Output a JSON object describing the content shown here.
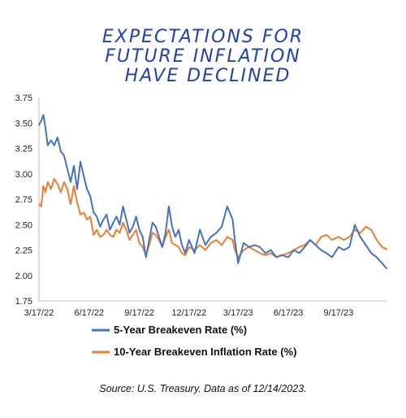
{
  "chart_data": {
    "type": "line",
    "title": [
      "EXPECTATIONS FOR",
      "FUTURE INFLATION",
      "HAVE DECLINED"
    ],
    "xlabel": "",
    "ylabel": "",
    "x_ticks": [
      "3/17/22",
      "6/17/22",
      "9/17/22",
      "12/17/22",
      "3/17/23",
      "6/17/23",
      "9/17/23"
    ],
    "y_ticks": [
      "1.75",
      "2.00",
      "2.25",
      "2.50",
      "2.75",
      "3.00",
      "3.25",
      "3.50",
      "3.75"
    ],
    "ylim": [
      1.75,
      3.75
    ],
    "xlim": [
      "3/17/22",
      "12/14/23"
    ],
    "grid": false,
    "legend_position": "bottom",
    "series": [
      {
        "name": "5-Year Breakeven Rate (%)",
        "color": "#4472c4",
        "x": [
          "3/17/22",
          "3/21/22",
          "3/25/22",
          "3/29/22",
          "4/2/22",
          "4/8/22",
          "4/14/22",
          "4/20/22",
          "4/26/22",
          "5/2/22",
          "5/8/22",
          "5/14/22",
          "5/20/22",
          "5/26/22",
          "6/1/22",
          "6/7/22",
          "6/13/22",
          "6/19/22",
          "6/25/22",
          "7/1/22",
          "7/7/22",
          "7/13/22",
          "7/19/22",
          "7/25/22",
          "7/31/22",
          "8/6/22",
          "8/12/22",
          "8/18/22",
          "8/24/22",
          "8/30/22",
          "9/5/22",
          "9/11/22",
          "9/17/22",
          "9/23/22",
          "9/29/22",
          "10/5/22",
          "10/11/22",
          "10/17/22",
          "10/23/22",
          "10/29/22",
          "11/4/22",
          "11/10/22",
          "11/16/22",
          "11/22/22",
          "11/28/22",
          "12/4/22",
          "12/10/22",
          "12/17/22",
          "12/27/22",
          "1/6/23",
          "1/16/23",
          "1/26/23",
          "2/5/23",
          "2/15/23",
          "2/25/23",
          "3/7/23",
          "3/11/23",
          "3/17/23",
          "3/27/23",
          "4/6/23",
          "4/16/23",
          "4/26/23",
          "5/6/23",
          "5/16/23",
          "5/26/23",
          "6/5/23",
          "6/17/23",
          "6/27/23",
          "7/7/23",
          "7/17/23",
          "7/27/23",
          "8/6/23",
          "8/16/23",
          "8/26/23",
          "9/5/23",
          "9/17/23",
          "9/27/23",
          "10/7/23",
          "10/17/23",
          "10/27/23",
          "11/6/23",
          "11/16/23",
          "11/26/23",
          "12/6/23",
          "12/14/23"
        ],
        "values": [
          3.48,
          3.52,
          3.58,
          3.45,
          3.28,
          3.33,
          3.28,
          3.36,
          3.22,
          3.18,
          3.05,
          2.92,
          3.08,
          2.85,
          3.12,
          2.98,
          2.85,
          2.78,
          2.62,
          2.58,
          2.48,
          2.55,
          2.6,
          2.45,
          2.52,
          2.58,
          2.5,
          2.68,
          2.55,
          2.42,
          2.48,
          2.58,
          2.45,
          2.38,
          2.18,
          2.35,
          2.52,
          2.48,
          2.38,
          2.28,
          2.42,
          2.68,
          2.48,
          2.38,
          2.45,
          2.3,
          2.22,
          2.35,
          2.22,
          2.45,
          2.3,
          2.38,
          2.42,
          2.48,
          2.68,
          2.55,
          2.35,
          2.12,
          2.32,
          2.28,
          2.3,
          2.28,
          2.22,
          2.25,
          2.18,
          2.2,
          2.18,
          2.25,
          2.22,
          2.28,
          2.35,
          2.3,
          2.25,
          2.22,
          2.18,
          2.28,
          2.25,
          2.28,
          2.5,
          2.38,
          2.3,
          2.22,
          2.18,
          2.12,
          2.07
        ]
      },
      {
        "name": "10-Year Breakeven Inflation Rate (%)",
        "color": "#ed7d31",
        "x": [
          "3/17/22",
          "3/21/22",
          "3/25/22",
          "3/29/22",
          "4/2/22",
          "4/8/22",
          "4/14/22",
          "4/20/22",
          "4/26/22",
          "5/2/22",
          "5/8/22",
          "5/14/22",
          "5/20/22",
          "5/26/22",
          "6/1/22",
          "6/7/22",
          "6/13/22",
          "6/19/22",
          "6/25/22",
          "7/1/22",
          "7/7/22",
          "7/13/22",
          "7/19/22",
          "7/25/22",
          "7/31/22",
          "8/6/22",
          "8/12/22",
          "8/18/22",
          "8/24/22",
          "8/30/22",
          "9/5/22",
          "9/11/22",
          "9/17/22",
          "9/23/22",
          "9/29/22",
          "10/5/22",
          "10/11/22",
          "10/17/22",
          "10/23/22",
          "10/29/22",
          "11/4/22",
          "11/10/22",
          "11/16/22",
          "11/22/22",
          "11/28/22",
          "12/4/22",
          "12/10/22",
          "12/17/22",
          "12/27/22",
          "1/6/23",
          "1/16/23",
          "1/26/23",
          "2/5/23",
          "2/15/23",
          "2/25/23",
          "3/7/23",
          "3/11/23",
          "3/17/23",
          "3/27/23",
          "4/6/23",
          "4/16/23",
          "4/26/23",
          "5/6/23",
          "5/16/23",
          "5/26/23",
          "6/5/23",
          "6/17/23",
          "6/27/23",
          "7/7/23",
          "7/17/23",
          "7/27/23",
          "8/6/23",
          "8/16/23",
          "8/26/23",
          "9/5/23",
          "9/17/23",
          "9/27/23",
          "10/7/23",
          "10/17/23",
          "10/27/23",
          "11/6/23",
          "11/16/23",
          "11/26/23",
          "12/6/23",
          "12/14/23"
        ],
        "values": [
          2.7,
          2.68,
          2.88,
          2.82,
          2.92,
          2.85,
          2.95,
          2.9,
          2.82,
          2.92,
          2.85,
          2.7,
          2.88,
          2.72,
          2.6,
          2.62,
          2.55,
          2.58,
          2.4,
          2.45,
          2.38,
          2.4,
          2.45,
          2.4,
          2.38,
          2.45,
          2.42,
          2.52,
          2.45,
          2.35,
          2.4,
          2.45,
          2.32,
          2.28,
          2.2,
          2.3,
          2.42,
          2.4,
          2.35,
          2.28,
          2.38,
          2.45,
          2.32,
          2.3,
          2.28,
          2.22,
          2.2,
          2.28,
          2.25,
          2.3,
          2.25,
          2.32,
          2.35,
          2.3,
          2.38,
          2.35,
          2.25,
          2.18,
          2.25,
          2.28,
          2.25,
          2.22,
          2.2,
          2.22,
          2.18,
          2.2,
          2.22,
          2.25,
          2.28,
          2.3,
          2.35,
          2.3,
          2.38,
          2.4,
          2.35,
          2.38,
          2.35,
          2.38,
          2.45,
          2.42,
          2.48,
          2.45,
          2.35,
          2.28,
          2.26
        ]
      }
    ],
    "source": "Source: U.S. Treasury. Data as of 12/14/2023."
  }
}
